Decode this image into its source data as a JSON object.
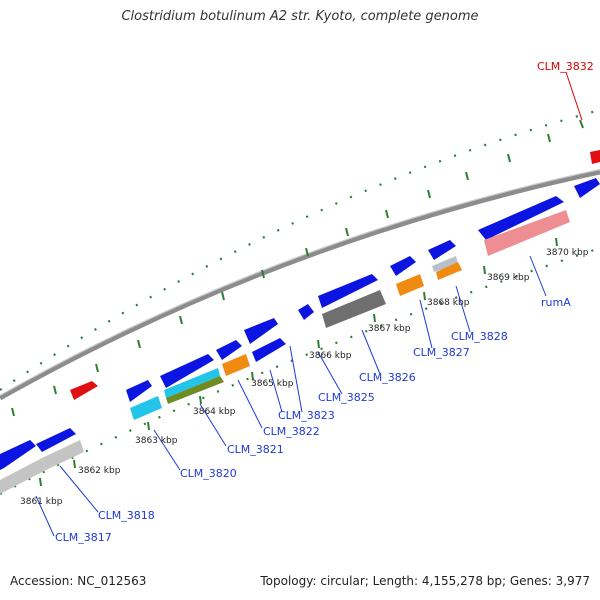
{
  "title": "Clostridium botulinum A2 str. Kyoto, complete genome",
  "footer": {
    "accession_label": "Accession:",
    "accession": "NC_012563",
    "summary": "Topology: circular; Length: 4,155,278 bp; Genes: 3,977"
  },
  "colors": {
    "backbone": "#8a8a8a",
    "tick_marks": "#2e7d32",
    "label_text": "#1f3ad6",
    "highlight_label": "#dd0000",
    "blue": "#0b14e0",
    "red": "#e01010",
    "gray": "#c4c4c4",
    "dark_gray": "#6f6f6f",
    "cyan": "#22c4e8",
    "olive": "#6e8c22",
    "orange": "#f08a10",
    "pink": "#ee8e92"
  },
  "scale_labels": [
    "3861 kbp",
    "3862 kbp",
    "3863 kbp",
    "3864 kbp",
    "3865 kbp",
    "3866 kbp",
    "3867 kbp",
    "3868 kbp",
    "3869 kbp",
    "3870 kbp"
  ],
  "gene_labels": [
    {
      "id": "clm3817",
      "text": "CLM_3817",
      "color": "blue"
    },
    {
      "id": "clm3818",
      "text": "CLM_3818",
      "color": "blue"
    },
    {
      "id": "clm3820",
      "text": "CLM_3820",
      "color": "blue"
    },
    {
      "id": "clm3821",
      "text": "CLM_3821",
      "color": "blue"
    },
    {
      "id": "clm3822",
      "text": "CLM_3822",
      "color": "blue"
    },
    {
      "id": "clm3823",
      "text": "CLM_3823",
      "color": "blue"
    },
    {
      "id": "clm3825",
      "text": "CLM_3825",
      "color": "blue"
    },
    {
      "id": "clm3826",
      "text": "CLM_3826",
      "color": "blue"
    },
    {
      "id": "clm3827",
      "text": "CLM_3827",
      "color": "blue"
    },
    {
      "id": "clm3828",
      "text": "CLM_3828",
      "color": "blue"
    },
    {
      "id": "ruma",
      "text": "rumA",
      "color": "blue"
    },
    {
      "id": "clm3832",
      "text": "CLM_3832",
      "color": "red"
    }
  ]
}
